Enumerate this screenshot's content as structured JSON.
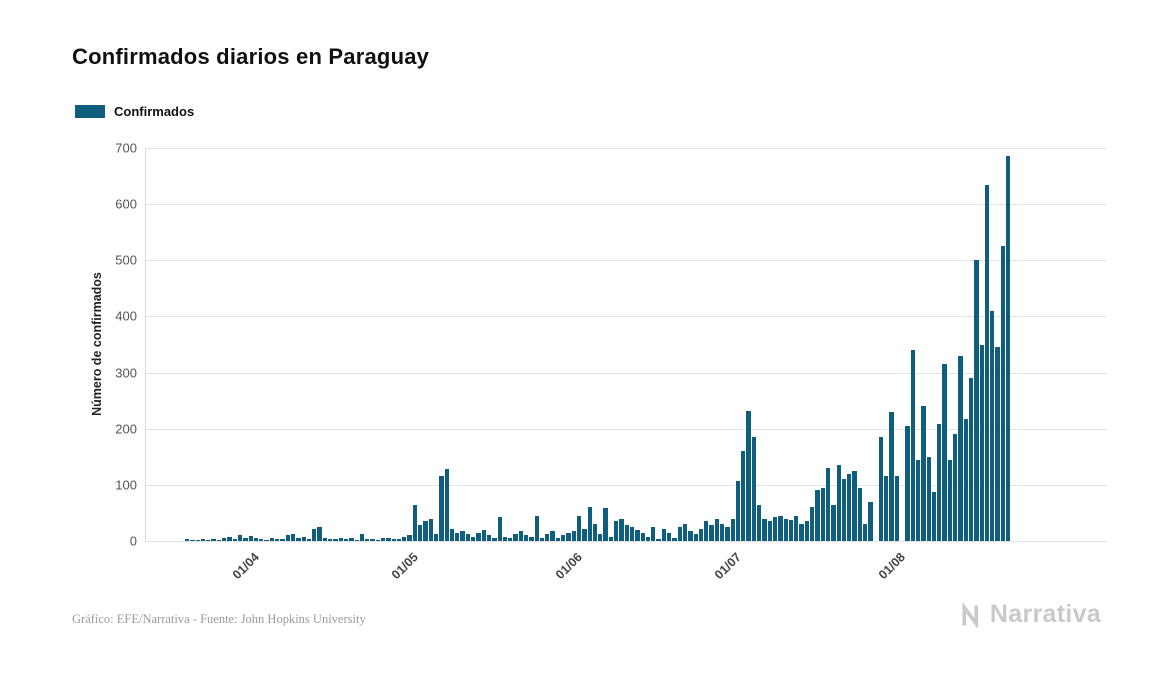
{
  "title": "Confirmados diarios en Paraguay",
  "legend": {
    "label": "Confirmados",
    "color": "#0f5e7e"
  },
  "footer": {
    "credit": "Gráfico: EFE/Narrativa - Fuente: John Hopkins University"
  },
  "branding": {
    "logo_text": "Narrativa"
  },
  "chart_data": {
    "type": "bar",
    "title": "Confirmados diarios en Paraguay",
    "series_name": "Confirmados",
    "xlabel": "",
    "ylabel": "Número de confirmados",
    "ylim": [
      0,
      700
    ],
    "ytick_step": 100,
    "ytick_labels": [
      "0",
      "100",
      "200",
      "300",
      "400",
      "500",
      "600",
      "700"
    ],
    "grid": true,
    "legend_position": "top-left",
    "bar_color": "#0f5e7e",
    "x_ticks": [
      {
        "label": "01/04",
        "index": 12
      },
      {
        "label": "01/05",
        "index": 42
      },
      {
        "label": "01/06",
        "index": 73
      },
      {
        "label": "01/07",
        "index": 103
      },
      {
        "label": "01/08",
        "index": 134
      }
    ],
    "values": [
      3,
      2,
      1,
      4,
      2,
      3,
      2,
      5,
      8,
      4,
      10,
      6,
      9,
      5,
      3,
      2,
      6,
      4,
      3,
      10,
      12,
      5,
      8,
      3,
      22,
      25,
      6,
      4,
      3,
      5,
      4,
      6,
      2,
      12,
      4,
      3,
      2,
      6,
      5,
      3,
      4,
      8,
      10,
      65,
      28,
      35,
      40,
      12,
      115,
      128,
      22,
      15,
      18,
      12,
      8,
      15,
      20,
      10,
      6,
      42,
      8,
      5,
      12,
      18,
      10,
      8,
      45,
      6,
      12,
      18,
      5,
      10,
      15,
      18,
      45,
      22,
      60,
      30,
      12,
      58,
      8,
      35,
      40,
      28,
      25,
      20,
      15,
      8,
      25,
      3,
      22,
      15,
      5,
      25,
      30,
      18,
      12,
      22,
      35,
      28,
      40,
      30,
      25,
      40,
      107,
      160,
      232,
      185,
      65,
      40,
      35,
      42,
      45,
      40,
      38,
      45,
      30,
      35,
      60,
      90,
      95,
      130,
      65,
      135,
      110,
      120,
      125,
      95,
      30,
      70,
      0,
      185,
      115,
      230,
      115,
      0,
      205,
      340,
      145,
      240,
      150,
      88,
      208,
      315,
      145,
      190,
      330,
      218,
      290,
      500,
      350,
      635,
      410,
      345,
      525,
      685
    ]
  }
}
